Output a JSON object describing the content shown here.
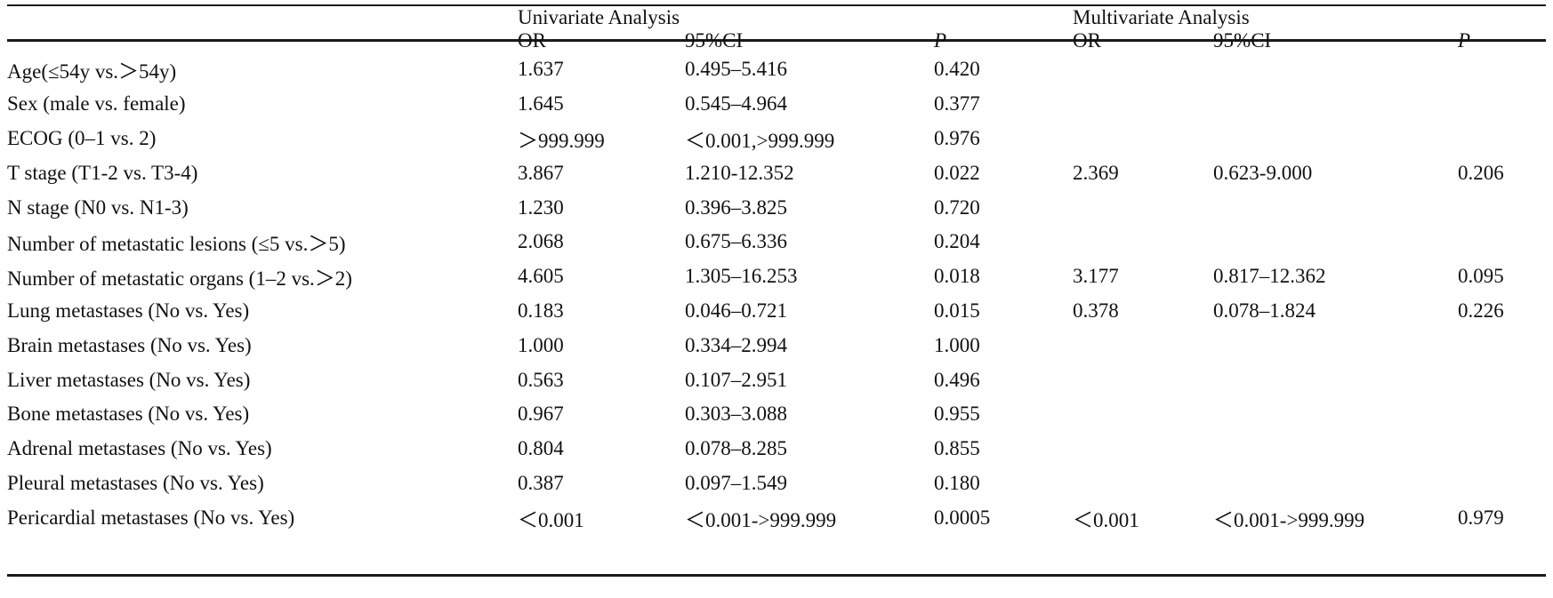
{
  "table": {
    "group_headers": {
      "univariate": "Univariate Analysis",
      "multivariate": "Multivariate Analysis"
    },
    "sub_headers": {
      "uni_or": "OR",
      "uni_ci": "95%CI",
      "uni_p": "P",
      "multi_or": "OR",
      "multi_ci": "95%CI",
      "multi_p": "P"
    },
    "rows": [
      {
        "variable": "Age(≤54y vs.＞54y)",
        "uni_or": "1.637",
        "uni_ci": "0.495–5.416",
        "uni_p": "0.420",
        "uni_p_bold": false,
        "multi_or": "",
        "multi_ci": "",
        "multi_p": ""
      },
      {
        "variable": "Sex (male vs. female)",
        "uni_or": "1.645",
        "uni_ci": "0.545–4.964",
        "uni_p": "0.377",
        "uni_p_bold": false,
        "multi_or": "",
        "multi_ci": "",
        "multi_p": ""
      },
      {
        "variable": "ECOG (0–1 vs. 2)",
        "uni_or": "＞999.999",
        "uni_ci": "＜0.001,>999.999",
        "uni_p": "0.976",
        "uni_p_bold": false,
        "multi_or": "",
        "multi_ci": "",
        "multi_p": ""
      },
      {
        "variable": "T stage (T1-2 vs. T3-4)",
        "uni_or": "3.867",
        "uni_ci": "1.210-12.352",
        "uni_p": "0.022",
        "uni_p_bold": true,
        "multi_or": "2.369",
        "multi_ci": "0.623-9.000",
        "multi_p": "0.206"
      },
      {
        "variable": "N stage (N0 vs. N1-3)",
        "uni_or": "1.230",
        "uni_ci": "0.396–3.825",
        "uni_p": "0.720",
        "uni_p_bold": false,
        "multi_or": "",
        "multi_ci": "",
        "multi_p": ""
      },
      {
        "variable": "Number of metastatic lesions (≤5 vs.＞5)",
        "uni_or": "2.068",
        "uni_ci": "0.675–6.336",
        "uni_p": "0.204",
        "uni_p_bold": false,
        "multi_or": "",
        "multi_ci": "",
        "multi_p": ""
      },
      {
        "variable": "Number of metastatic organs (1–2 vs.＞2)",
        "uni_or": "4.605",
        "uni_ci": "1.305–16.253",
        "uni_p": "0.018",
        "uni_p_bold": true,
        "multi_or": "3.177",
        "multi_ci": "0.817–12.362",
        "multi_p": "0.095"
      },
      {
        "variable": "Lung metastases (No vs. Yes)",
        "uni_or": "0.183",
        "uni_ci": "0.046–0.721",
        "uni_p": "0.015",
        "uni_p_bold": true,
        "multi_or": "0.378",
        "multi_ci": "0.078–1.824",
        "multi_p": "0.226"
      },
      {
        "variable": "Brain metastases (No vs. Yes)",
        "uni_or": "1.000",
        "uni_ci": "0.334–2.994",
        "uni_p": "1.000",
        "uni_p_bold": false,
        "multi_or": "",
        "multi_ci": "",
        "multi_p": ""
      },
      {
        "variable": "Liver metastases (No vs. Yes)",
        "uni_or": "0.563",
        "uni_ci": "0.107–2.951",
        "uni_p": "0.496",
        "uni_p_bold": false,
        "multi_or": "",
        "multi_ci": "",
        "multi_p": ""
      },
      {
        "variable": "Bone metastases (No vs. Yes)",
        "uni_or": "0.967",
        "uni_ci": "0.303–3.088",
        "uni_p": "0.955",
        "uni_p_bold": false,
        "multi_or": "",
        "multi_ci": "",
        "multi_p": ""
      },
      {
        "variable": "Adrenal metastases (No vs. Yes)",
        "uni_or": "0.804",
        "uni_ci": "0.078–8.285",
        "uni_p": "0.855",
        "uni_p_bold": false,
        "multi_or": "",
        "multi_ci": "",
        "multi_p": ""
      },
      {
        "variable": "Pleural metastases (No vs. Yes)",
        "uni_or": "0.387",
        "uni_ci": "0.097–1.549",
        "uni_p": "0.180",
        "uni_p_bold": false,
        "multi_or": "",
        "multi_ci": "",
        "multi_p": ""
      },
      {
        "variable": "Pericardial metastases (No vs. Yes)",
        "uni_or": "＜0.001",
        "uni_ci": "＜0.001->999.999",
        "uni_p": "0.0005",
        "uni_p_bold": true,
        "multi_or": "＜0.001",
        "multi_ci": "＜0.001->999.999",
        "multi_p": "0.979"
      }
    ]
  }
}
